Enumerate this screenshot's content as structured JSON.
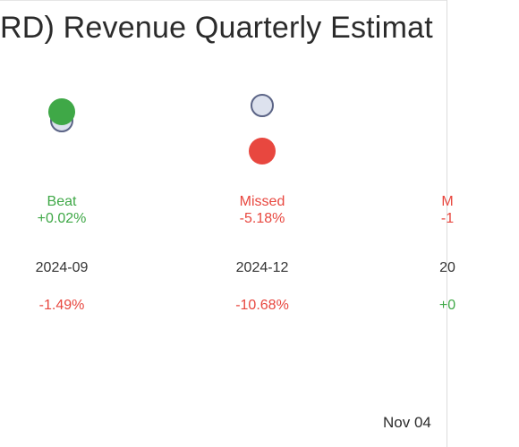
{
  "title": "RD) Revenue Quarterly Estimat",
  "date_label": "Nov 04",
  "colors": {
    "beat": "#3fa847",
    "missed": "#e8473f",
    "estimate_fill": "#dde2ee",
    "estimate_stroke": "#5b6486"
  },
  "chart_data": {
    "type": "scatter",
    "title": "RD) Revenue Quarterly Estimat",
    "periods": [
      {
        "period": "2024-09",
        "status": "Beat",
        "surprise": "+0.02%",
        "change": "-1.49%",
        "estimate_rel": 1.0,
        "actual_rel": 1.0002
      },
      {
        "period": "2024-12",
        "status": "Missed",
        "surprise": "-5.18%",
        "change": "-10.68%",
        "estimate_rel": 1.0,
        "actual_rel": 0.9482
      },
      {
        "period": "20",
        "status": "M",
        "surprise": "-1",
        "change": "+0",
        "estimate_rel": null,
        "actual_rel": null
      }
    ]
  }
}
